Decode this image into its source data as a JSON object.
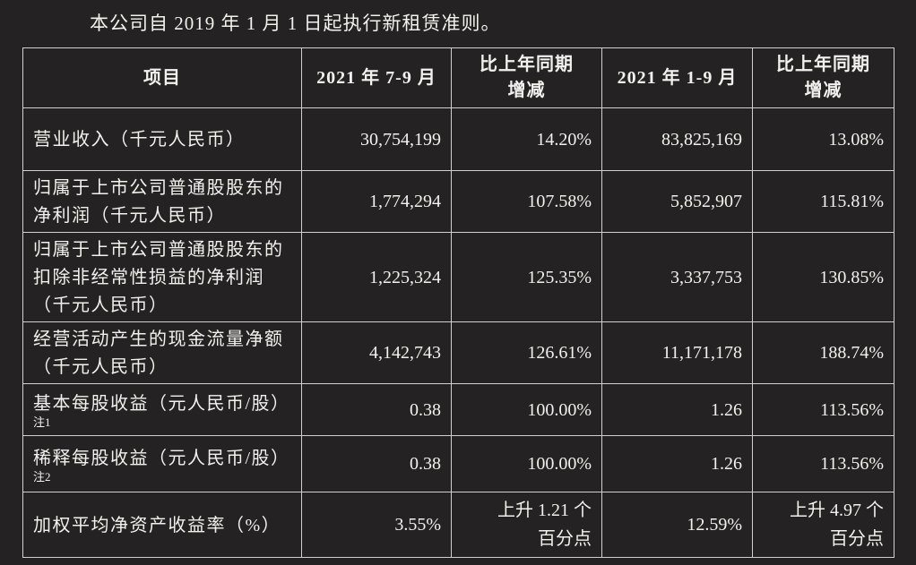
{
  "page": {
    "intro_text": "本公司自 2019 年 1 月 1 日起执行新租赁准则。"
  },
  "table": {
    "headers": [
      "项目",
      "2021 年 7-9 月",
      "比上年同期\n增减",
      "2021 年 1-9 月",
      "比上年同期\n增减"
    ],
    "rows": [
      {
        "item": "营业收入（千元人民币）",
        "note": "",
        "current_quarter": "30,754,199",
        "quarter_yoy_change": "14.20%",
        "year_to_date": "83,825,169",
        "ytd_yoy_change": "13.08%"
      },
      {
        "item": "归属于上市公司普通股股东的\n净利润（千元人民币）",
        "note": "",
        "current_quarter": "1,774,294",
        "quarter_yoy_change": "107.58%",
        "year_to_date": "5,852,907",
        "ytd_yoy_change": "115.81%"
      },
      {
        "item": "归属于上市公司普通股股东的\n扣除非经常性损益的净利润\n（千元人民币）",
        "note": "",
        "current_quarter": "1,225,324",
        "quarter_yoy_change": "125.35%",
        "year_to_date": "3,337,753",
        "ytd_yoy_change": "130.85%"
      },
      {
        "item": "经营活动产生的现金流量净额\n（千元人民币）",
        "note": "",
        "current_quarter": "4,142,743",
        "quarter_yoy_change": "126.61%",
        "year_to_date": "11,171,178",
        "ytd_yoy_change": "188.74%"
      },
      {
        "item": "基本每股收益（元人民币/股）",
        "note": "注1",
        "current_quarter": "0.38",
        "quarter_yoy_change": "100.00%",
        "year_to_date": "1.26",
        "ytd_yoy_change": "113.56%"
      },
      {
        "item": "稀释每股收益（元人民币/股）",
        "note": "注2",
        "current_quarter": "0.38",
        "quarter_yoy_change": "100.00%",
        "year_to_date": "1.26",
        "ytd_yoy_change": "113.56%"
      },
      {
        "item": "加权平均净资产收益率（%）",
        "note": "",
        "current_quarter": "3.55%",
        "quarter_yoy_change": "上升 1.21 个\n百分点",
        "year_to_date": "12.59%",
        "ytd_yoy_change": "上升 4.97 个\n百分点"
      }
    ]
  },
  "colors": {
    "background": "#242222",
    "text": "#f3f1ef",
    "border": "#d3d1d0"
  }
}
